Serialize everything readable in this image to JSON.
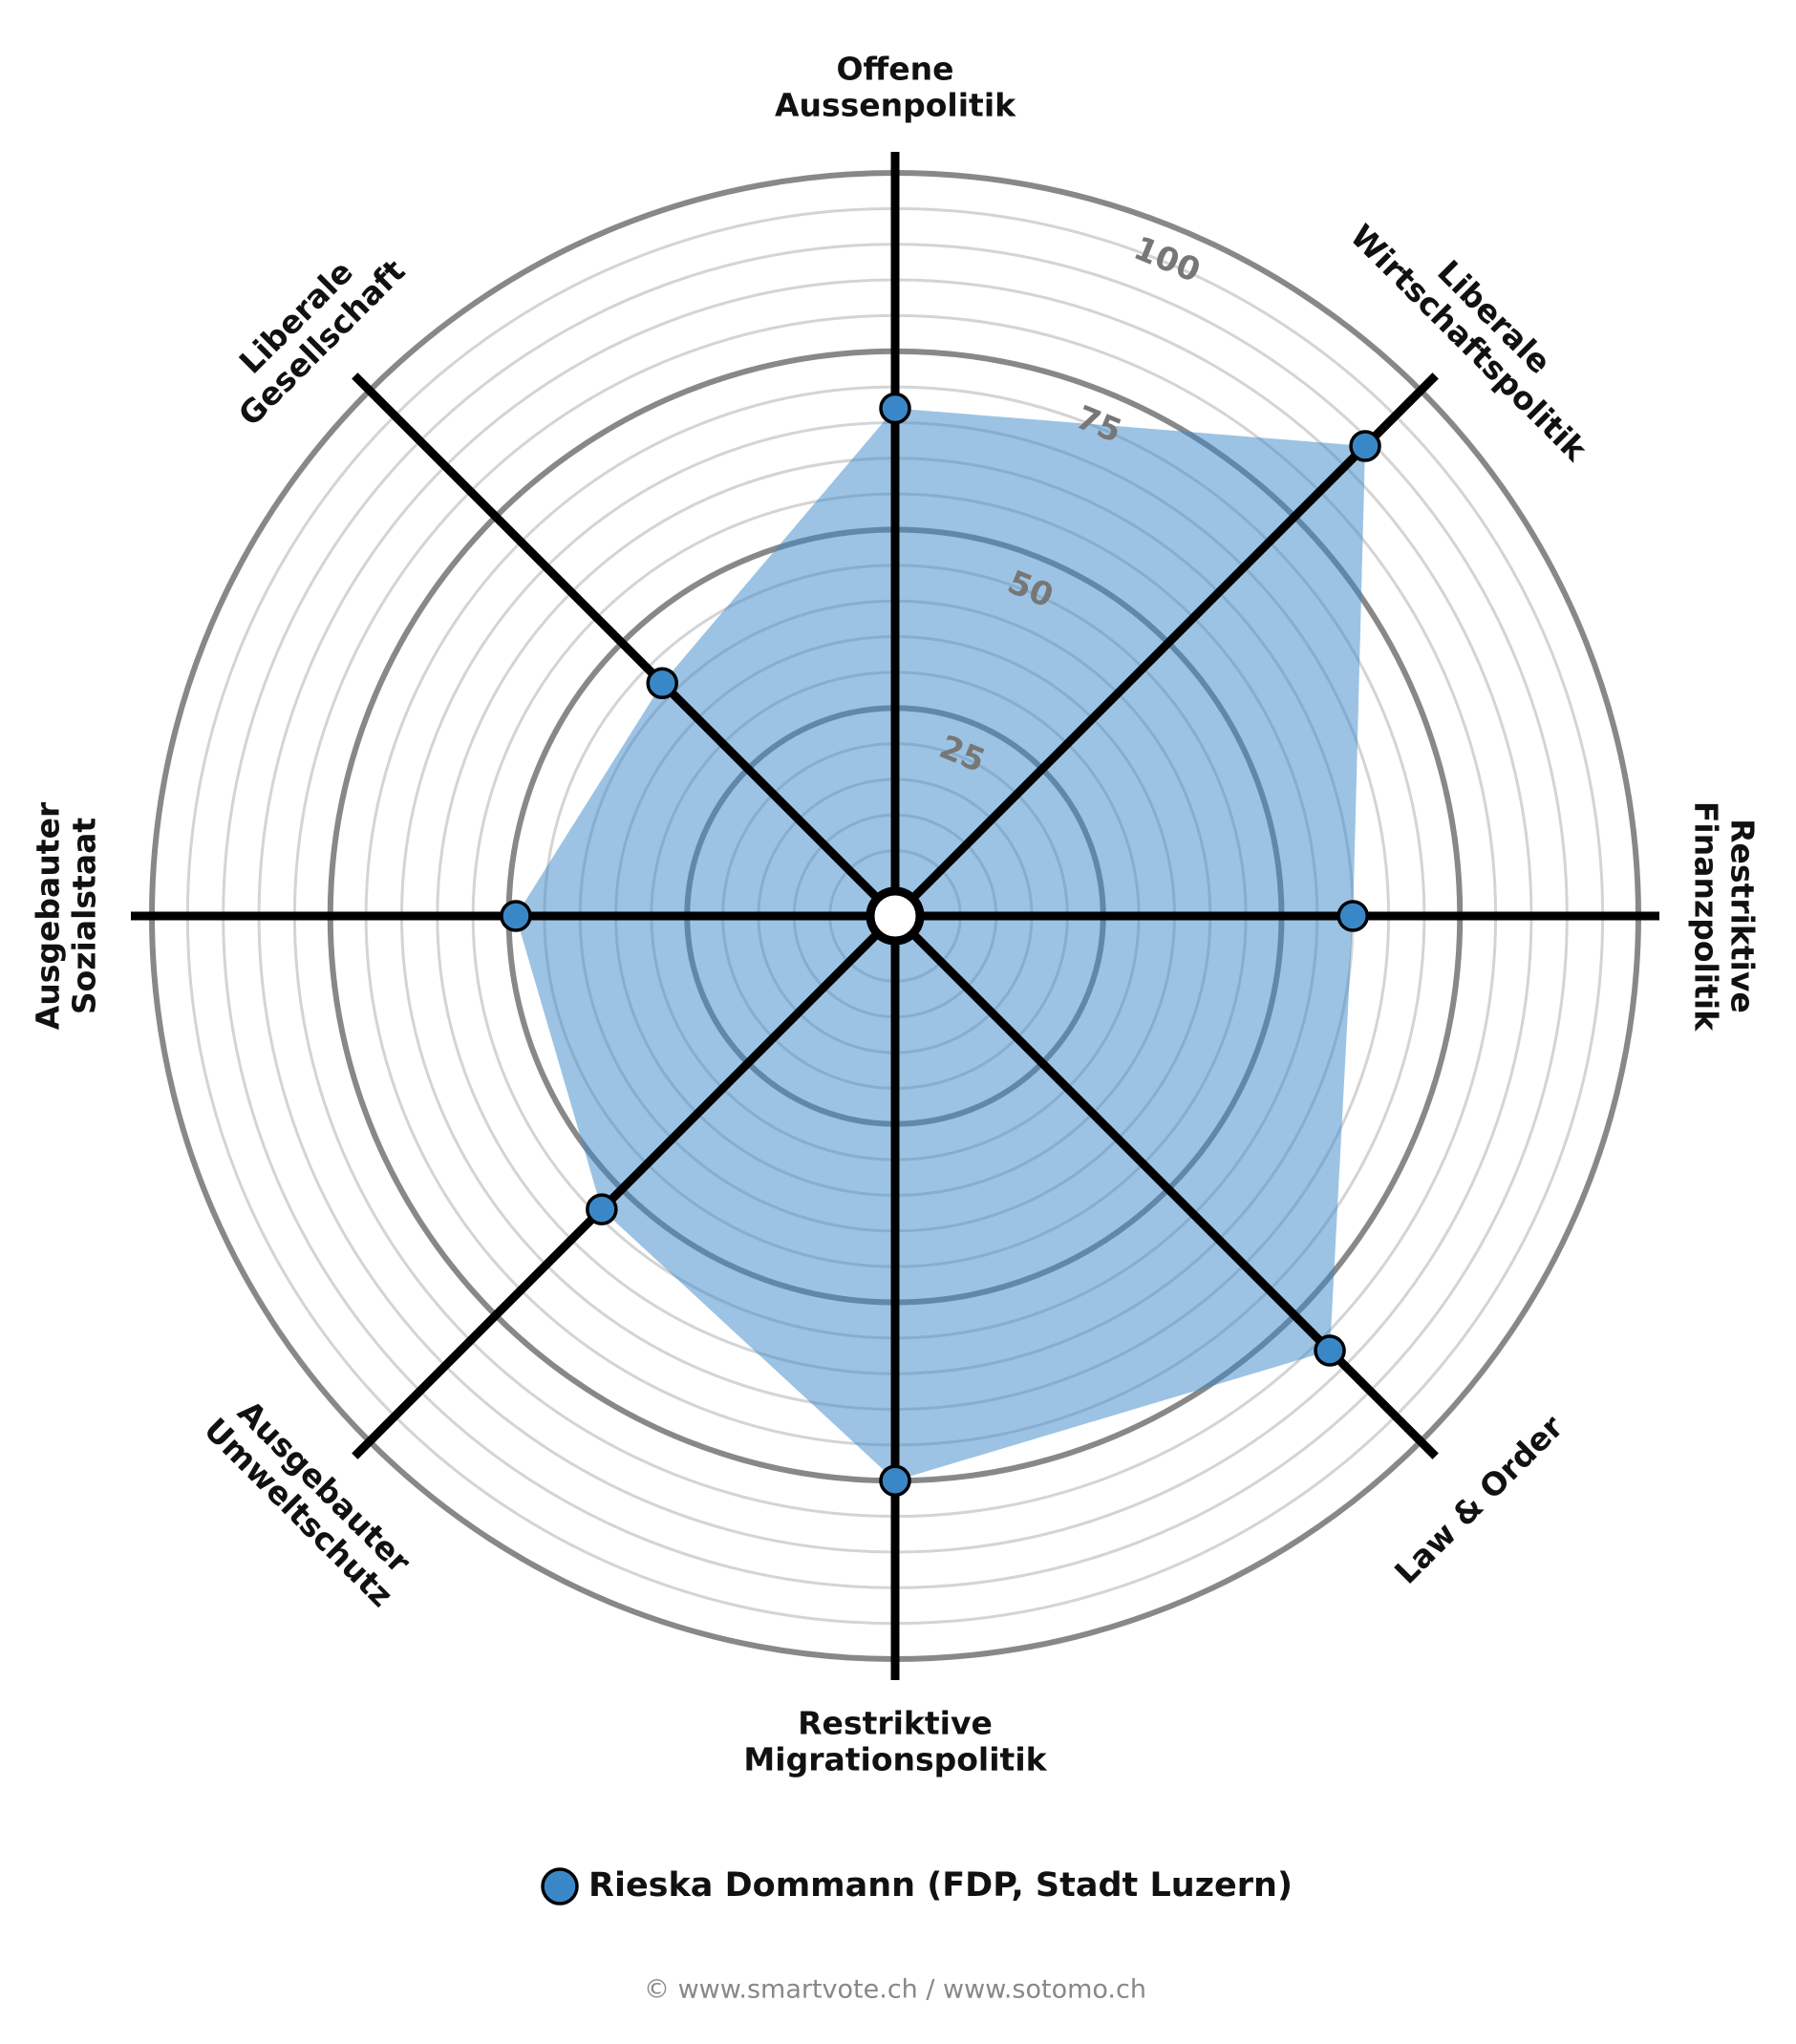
{
  "chart_data": {
    "type": "radar",
    "categories": [
      [
        "Offene",
        "Aussenpolitik"
      ],
      [
        "Liberale",
        "Wirtschaftspolitik"
      ],
      [
        "Restriktive",
        "Finanzpolitik"
      ],
      [
        "Law & Order"
      ],
      [
        "Restriktive",
        "Migrationspolitik"
      ],
      [
        "Ausgebauter",
        "Umweltschutz"
      ],
      [
        "Ausgebauter",
        "Sozialstaat"
      ],
      [
        "Liberale",
        "Gesellschaft"
      ]
    ],
    "series": [
      {
        "name": "Rieska Dommann (FDP, Stadt Luzern)",
        "color": "#3a87c8",
        "values": [
          67,
          89,
          60,
          82,
          75,
          54,
          49,
          42
        ]
      }
    ],
    "ylim": [
      0,
      100
    ],
    "yticks": [
      25,
      50,
      75,
      100
    ],
    "grid": true,
    "footer": "© www.smartvote.ch / www.sotomo.ch"
  }
}
